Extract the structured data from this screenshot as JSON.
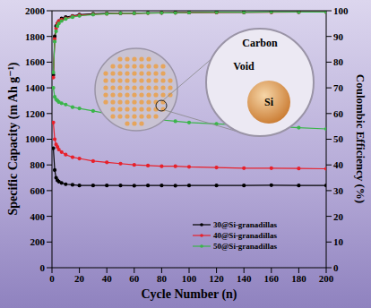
{
  "chart_data": {
    "type": "line",
    "x_label": "Cycle Number (n)",
    "y_label": "Specific Capacity (m Ah g⁻¹)",
    "y2_label": "Coulombic Efficiency (%)",
    "x": [
      1,
      2,
      3,
      4,
      5,
      7,
      10,
      15,
      20,
      30,
      40,
      50,
      60,
      70,
      80,
      90,
      100,
      120,
      140,
      160,
      180,
      200
    ],
    "xlim": [
      0,
      200
    ],
    "xticks": [
      0,
      20,
      40,
      60,
      80,
      100,
      120,
      140,
      160,
      180,
      200
    ],
    "ylim": [
      0,
      2000
    ],
    "yticks": [
      0,
      200,
      400,
      600,
      800,
      1000,
      1200,
      1400,
      1600,
      1800,
      2000
    ],
    "y2lim": [
      0,
      100
    ],
    "y2ticks": [
      0,
      10,
      20,
      30,
      40,
      50,
      60,
      70,
      80,
      90,
      100
    ],
    "grid": false,
    "legend": "lower right",
    "marker": "circle",
    "series": [
      {
        "name": "30@Si-granadillas",
        "color": "#000000",
        "values": [
          930,
          760,
          700,
          680,
          670,
          660,
          650,
          645,
          640,
          640,
          640,
          640,
          638,
          640,
          640,
          638,
          640,
          640,
          640,
          642,
          640,
          640
        ],
        "efficiency": [
          75,
          90,
          94,
          95,
          96,
          97,
          97.5,
          98,
          98.5,
          98.8,
          99,
          99,
          99,
          99.2,
          99.2,
          99.3,
          99.3,
          99.4,
          99.4,
          99.5,
          99.5,
          99.5
        ]
      },
      {
        "name": "40@Si-granadillas",
        "color": "#e8202a",
        "values": [
          1130,
          1000,
          960,
          940,
          920,
          900,
          880,
          860,
          850,
          830,
          820,
          810,
          800,
          795,
          790,
          790,
          785,
          780,
          775,
          775,
          772,
          770
        ],
        "efficiency": [
          74,
          89,
          93,
          95,
          96,
          96.5,
          97,
          97.8,
          98.2,
          98.6,
          98.8,
          99,
          99,
          99.1,
          99.2,
          99.2,
          99.3,
          99.3,
          99.4,
          99.4,
          99.5,
          99.5
        ]
      },
      {
        "name": "50@Si-granadillas",
        "color": "#3ab54a",
        "values": [
          1400,
          1330,
          1310,
          1300,
          1290,
          1280,
          1270,
          1250,
          1240,
          1220,
          1200,
          1185,
          1170,
          1160,
          1150,
          1140,
          1130,
          1120,
          1110,
          1100,
          1090,
          1080
        ],
        "efficiency": [
          76,
          88,
          92,
          94,
          95,
          96,
          96.8,
          97.5,
          98,
          98.5,
          98.8,
          99,
          99,
          99.1,
          99.2,
          99.2,
          99.3,
          99.4,
          99.4,
          99.5,
          99.5,
          99.5
        ]
      }
    ],
    "annotations": [
      "Carbon",
      "Void",
      "Si"
    ]
  }
}
